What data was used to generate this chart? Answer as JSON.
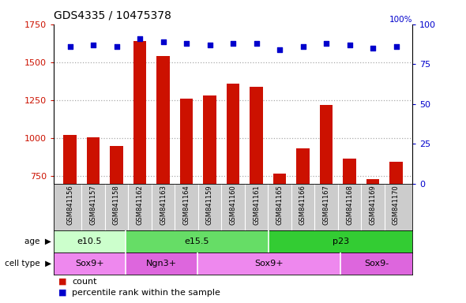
{
  "title": "GDS4335 / 10475378",
  "samples": [
    "GSM841156",
    "GSM841157",
    "GSM841158",
    "GSM841162",
    "GSM841163",
    "GSM841164",
    "GSM841159",
    "GSM841160",
    "GSM841161",
    "GSM841165",
    "GSM841166",
    "GSM841167",
    "GSM841168",
    "GSM841169",
    "GSM841170"
  ],
  "count_values": [
    1020,
    1005,
    950,
    1640,
    1540,
    1260,
    1280,
    1360,
    1340,
    765,
    930,
    1220,
    865,
    730,
    845
  ],
  "percentile_values": [
    86,
    87,
    86,
    91,
    89,
    88,
    87,
    88,
    88,
    84,
    86,
    88,
    87,
    85,
    86
  ],
  "ylim_left": [
    700,
    1750
  ],
  "ylim_right": [
    0,
    100
  ],
  "yticks_left": [
    750,
    1000,
    1250,
    1500,
    1750
  ],
  "yticks_right": [
    0,
    25,
    50,
    75,
    100
  ],
  "age_groups": [
    {
      "label": "e10.5",
      "start": 0,
      "end": 3,
      "color": "#ccffcc"
    },
    {
      "label": "e15.5",
      "start": 3,
      "end": 9,
      "color": "#66dd66"
    },
    {
      "label": "p23",
      "start": 9,
      "end": 15,
      "color": "#33cc33"
    }
  ],
  "cell_type_groups": [
    {
      "label": "Sox9+",
      "start": 0,
      "end": 3,
      "color": "#ee88ee"
    },
    {
      "label": "Ngn3+",
      "start": 3,
      "end": 6,
      "color": "#dd66dd"
    },
    {
      "label": "Sox9+",
      "start": 6,
      "end": 12,
      "color": "#ee88ee"
    },
    {
      "label": "Sox9-",
      "start": 12,
      "end": 15,
      "color": "#dd66dd"
    }
  ],
  "bar_color": "#cc1100",
  "dot_color": "#0000cc",
  "grid_color": "#aaaaaa",
  "left_axis_color": "#cc1100",
  "right_axis_color": "#0000cc",
  "legend_count_color": "#cc1100",
  "legend_pct_color": "#0000cc",
  "bg_color": "#ffffff",
  "sample_bg_color": "#cccccc"
}
